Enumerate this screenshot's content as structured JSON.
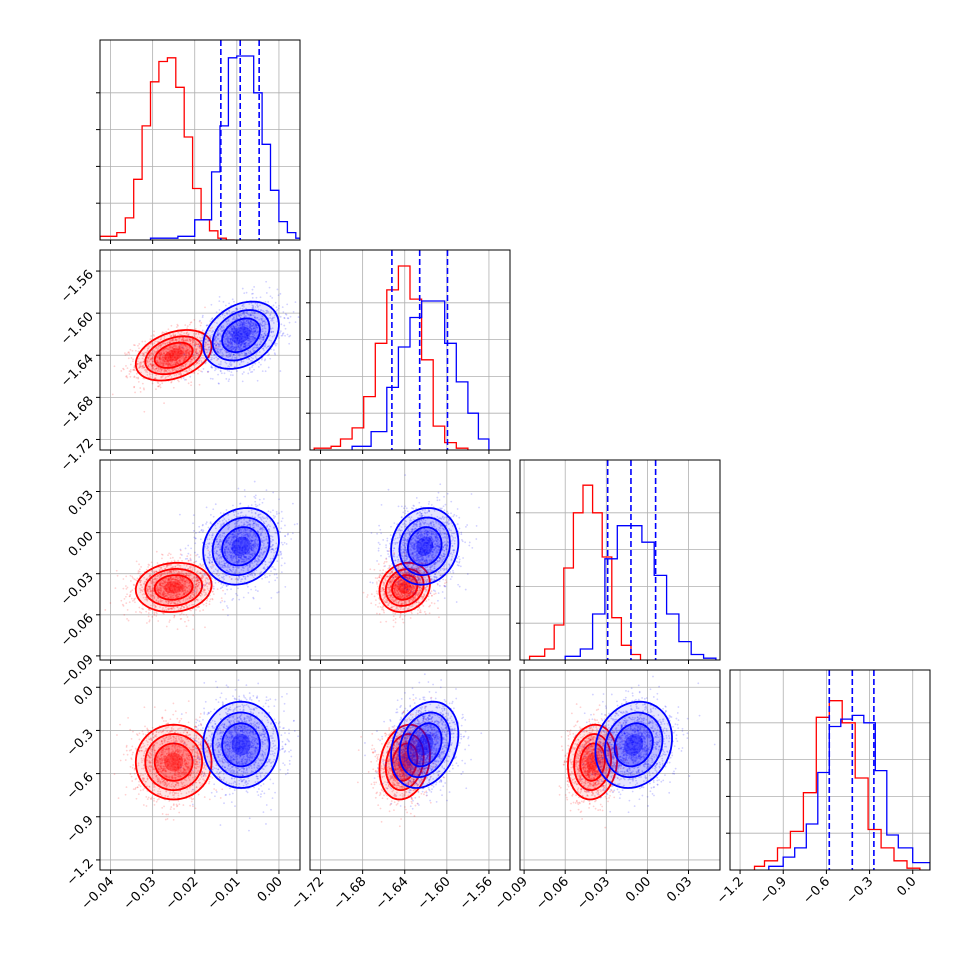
{
  "chart_data": {
    "type": "corner",
    "colors": {
      "red": "#ff0000",
      "blue": "#0000ff"
    },
    "grid": true,
    "parameters": [
      {
        "range": [
          -0.0425,
          0.005
        ],
        "ticks": [
          "−0.04",
          "−0.03",
          "−0.02",
          "−0.01",
          "0.00"
        ],
        "tick_values": [
          -0.04,
          -0.03,
          -0.02,
          -0.01,
          0.0
        ]
      },
      {
        "range": [
          -1.73,
          -1.54
        ],
        "ticks": [
          "−1.72",
          "−1.68",
          "−1.64",
          "−1.60",
          "−1.56"
        ],
        "tick_values": [
          -1.72,
          -1.68,
          -1.64,
          -1.6,
          -1.56
        ]
      },
      {
        "range": [
          -0.093,
          0.053
        ],
        "ticks": [
          "−0.09",
          "−0.06",
          "−0.03",
          "0.00",
          "0.03"
        ],
        "tick_values": [
          -0.09,
          -0.06,
          -0.03,
          0.0,
          0.03
        ]
      },
      {
        "range": [
          -1.27,
          0.12
        ],
        "ticks": [
          "−1.2",
          "−0.9",
          "−0.6",
          "−0.3",
          "0.0"
        ],
        "tick_values": [
          -1.2,
          -0.9,
          -0.6,
          -0.3,
          0.0
        ]
      }
    ],
    "series": [
      {
        "color": "#ff0000",
        "mean": [
          -0.025,
          -1.64,
          -0.04,
          -0.52
        ],
        "sigma": [
          0.0045,
          0.012,
          0.009,
          0.13
        ],
        "corr": {
          "0-1": 0.35,
          "0-2": 0.1,
          "1-2": 0.15,
          "0-3": 0.0,
          "1-3": 0.2,
          "2-3": 0.1
        },
        "hist_bins": [
          [
            -0.0425,
            -0.0385,
            -0.0365,
            -0.0345,
            -0.0325,
            -0.0305,
            -0.0285,
            -0.0265,
            -0.0245,
            -0.0225,
            -0.0205,
            -0.0185,
            -0.0165,
            -0.0145,
            -0.0125,
            -0.0105
          ],
          [
            -1.726,
            -1.71,
            -1.701,
            -1.69,
            -1.679,
            -1.668,
            -1.657,
            -1.646,
            -1.635,
            -1.624,
            -1.613,
            -1.602,
            -1.591,
            -1.58
          ],
          [
            -0.086,
            -0.075,
            -0.068,
            -0.061,
            -0.054,
            -0.047,
            -0.04,
            -0.033,
            -0.026,
            -0.019,
            -0.012,
            -0.005
          ],
          [
            -1.1,
            -1.03,
            -0.94,
            -0.85,
            -0.76,
            -0.67,
            -0.58,
            -0.49,
            -0.4,
            -0.31,
            -0.22,
            -0.13,
            -0.04,
            0.05
          ]
        ],
        "hist_counts": [
          [
            0.02,
            0.04,
            0.12,
            0.33,
            0.62,
            0.86,
            0.97,
            0.99,
            0.83,
            0.56,
            0.28,
            0.11,
            0.05,
            0.01,
            0.0
          ],
          [
            0.01,
            0.02,
            0.06,
            0.12,
            0.29,
            0.58,
            0.87,
            1.0,
            0.82,
            0.49,
            0.13,
            0.04,
            0.01
          ],
          [
            0.02,
            0.06,
            0.19,
            0.5,
            0.8,
            0.95,
            0.8,
            0.56,
            0.23,
            0.08,
            0.03
          ],
          [
            0.02,
            0.05,
            0.12,
            0.21,
            0.42,
            0.83,
            0.92,
            0.8,
            0.5,
            0.22,
            0.12,
            0.05,
            0.01
          ]
        ]
      },
      {
        "color": "#0000ff",
        "mean": [
          -0.009,
          -1.621,
          -0.01,
          -0.4
        ],
        "sigma": [
          0.0045,
          0.016,
          0.014,
          0.15
        ],
        "corr": {
          "0-1": 0.3,
          "0-2": 0.15,
          "1-2": 0.1,
          "0-3": 0.0,
          "1-3": 0.25,
          "2-3": 0.15
        },
        "quantiles": [
          [
            -0.0138,
            -0.0092,
            -0.0047
          ],
          [
            -1.6522,
            -1.6258,
            -1.5994
          ],
          [
            -0.029,
            -0.012,
            0.006
          ],
          [
            -0.58,
            -0.42,
            -0.27
          ]
        ],
        "hist_bins": [
          [
            -0.0305,
            -0.024,
            -0.02,
            -0.016,
            -0.014,
            -0.012,
            -0.01,
            -0.008,
            -0.006,
            -0.004,
            -0.002,
            0.0,
            0.002,
            0.004,
            0.008
          ],
          [
            -1.69,
            -1.672,
            -1.657,
            -1.646,
            -1.635,
            -1.624,
            -1.613,
            -1.602,
            -1.591,
            -1.58,
            -1.57,
            -1.56
          ],
          [
            -0.06,
            -0.049,
            -0.04,
            -0.031,
            -0.022,
            -0.013,
            -0.004,
            0.005,
            0.014,
            0.023,
            0.032,
            0.041,
            0.05
          ],
          [
            -1.0,
            -0.9,
            -0.82,
            -0.74,
            -0.66,
            -0.58,
            -0.5,
            -0.42,
            -0.34,
            -0.26,
            -0.18,
            -0.1,
            0.0,
            0.12
          ]
        ],
        "hist_counts": [
          [
            0.01,
            0.02,
            0.11,
            0.37,
            0.62,
            0.99,
            1.0,
            1.0,
            0.8,
            0.52,
            0.27,
            0.1,
            0.04,
            0.01
          ],
          [
            0.02,
            0.1,
            0.34,
            0.56,
            0.72,
            0.81,
            0.81,
            0.58,
            0.37,
            0.2,
            0.06
          ],
          [
            0.02,
            0.06,
            0.25,
            0.55,
            0.73,
            0.73,
            0.64,
            0.46,
            0.25,
            0.1,
            0.03,
            0.01
          ],
          [
            0.02,
            0.07,
            0.12,
            0.25,
            0.53,
            0.78,
            0.82,
            0.84,
            0.8,
            0.54,
            0.19,
            0.12,
            0.04
          ]
        ]
      }
    ]
  }
}
